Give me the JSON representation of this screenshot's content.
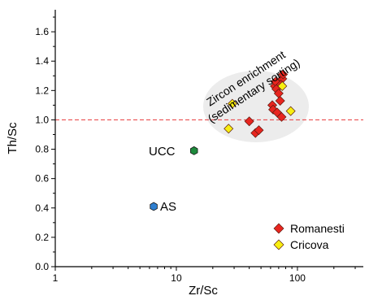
{
  "chart_data": {
    "type": "scatter",
    "xlabel": "Zr/Sc",
    "ylabel": "Th/Sc",
    "xscale": "log",
    "xlim": [
      1,
      350
    ],
    "ylim": [
      0,
      1.75
    ],
    "x_tick_labels": [
      "1",
      "10",
      "100"
    ],
    "y_tick_labels": [
      "0.0",
      "0.2",
      "0.4",
      "0.6",
      "0.8",
      "1.0",
      "1.2",
      "1.4",
      "1.6"
    ],
    "reference_line": {
      "y": 1.0,
      "color": "#e8373a",
      "style": "dashed"
    },
    "annotation": {
      "line1": "Zircon enrichment",
      "line2": "(sedimentary sorting)",
      "fill": "#ececec"
    },
    "reference_points": [
      {
        "label": "UCC",
        "x": 14,
        "y": 0.79,
        "color": "#1e8a3c"
      },
      {
        "label": "AS",
        "x": 6.5,
        "y": 0.41,
        "color": "#2f7fd0"
      }
    ],
    "legend": {
      "position": "bottom-right"
    },
    "series": [
      {
        "name": "Romanesti",
        "color": "#e8251f",
        "x": [
          40,
          45,
          48,
          62,
          63,
          65,
          66,
          67,
          68,
          70,
          72,
          74,
          75,
          76,
          73
        ],
        "y": [
          0.99,
          0.91,
          0.93,
          1.1,
          1.07,
          1.23,
          1.26,
          1.21,
          1.05,
          1.18,
          1.13,
          1.02,
          1.28,
          1.31,
          1.24
        ]
      },
      {
        "name": "Cricova",
        "color": "#f7ee10",
        "x": [
          27,
          29,
          75,
          88
        ],
        "y": [
          0.94,
          1.11,
          1.23,
          1.06
        ]
      }
    ]
  }
}
